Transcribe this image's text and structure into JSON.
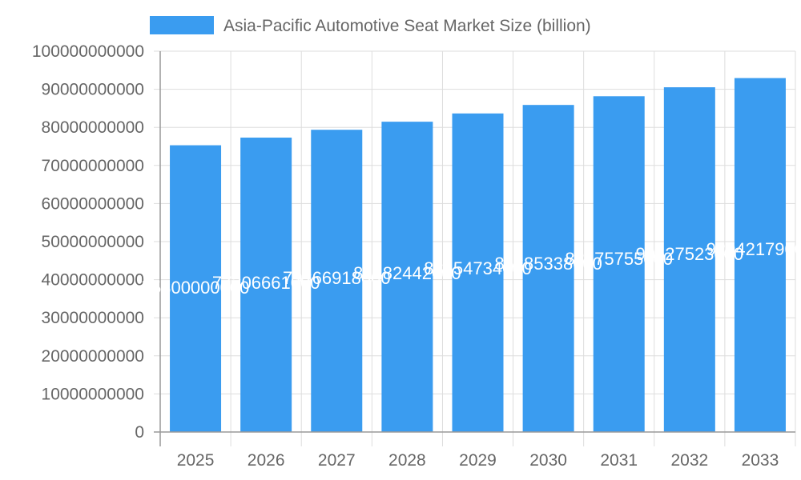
{
  "chart_data": {
    "type": "bar",
    "categories": [
      "2025",
      "2026",
      "2027",
      "2028",
      "2029",
      "2030",
      "2031",
      "2032",
      "2033"
    ],
    "series": [
      {
        "name": "Asia-Pacific Automotive Seat Market Size (billion)",
        "values": [
          75300000000,
          77306661000,
          79366918000,
          81482442000,
          83654734000,
          85885338000,
          88175755000,
          90527523000,
          92942179000
        ],
        "color": "#3a9cf0"
      }
    ],
    "ylim": [
      0,
      100000000000
    ],
    "yticks": [
      "0",
      "10000000000",
      "20000000000",
      "30000000000",
      "40000000000",
      "50000000000",
      "60000000000",
      "70000000000",
      "80000000000",
      "90000000000",
      "100000000000"
    ],
    "grid": true,
    "legend": "top"
  }
}
